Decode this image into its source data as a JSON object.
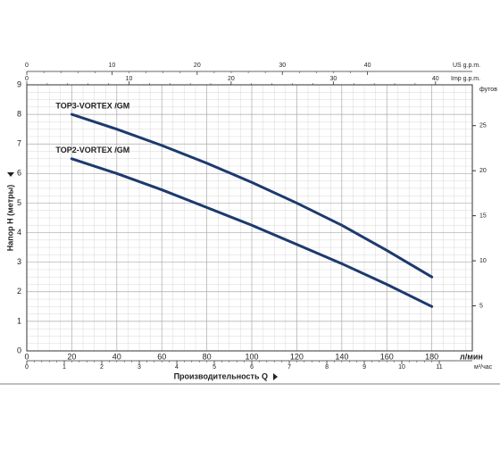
{
  "chart_data": {
    "type": "line",
    "x": [
      20,
      40,
      60,
      80,
      100,
      120,
      140,
      160,
      180
    ],
    "series": [
      {
        "name": "TOP3-VORTEX /GM",
        "color": "#1d3a6e",
        "values": [
          8.0,
          7.5,
          6.95,
          6.35,
          5.7,
          5.0,
          4.25,
          3.4,
          2.5
        ]
      },
      {
        "name": "TOP2-VORTEX /GM",
        "color": "#1d3a6e",
        "values": [
          6.5,
          6.0,
          5.45,
          4.85,
          4.25,
          3.6,
          2.95,
          2.25,
          1.5
        ]
      }
    ],
    "xlim": [
      0,
      198
    ],
    "xticks": [
      0,
      20,
      40,
      60,
      80,
      100,
      120,
      140,
      160,
      180
    ],
    "x_unit": "л/мин",
    "x_title": "Производительность Q",
    "ylim": [
      0,
      9
    ],
    "yticks": [
      0,
      1,
      2,
      3,
      4,
      5,
      6,
      7,
      8,
      9
    ],
    "y_title": "Напор H (метры)",
    "y2lim": [
      0,
      29.53
    ],
    "y2ticks": [
      5,
      10,
      15,
      20,
      25
    ],
    "y2_unit": "футов",
    "secondary_x_axes": [
      {
        "label": "м³/час",
        "lim": [
          0,
          11.88
        ],
        "ticks": [
          0,
          1,
          2,
          3,
          4,
          5,
          6,
          7,
          8,
          9,
          10,
          11
        ]
      },
      {
        "label": "US g.p.m.",
        "lim": [
          0,
          52.3
        ],
        "ticks": [
          0,
          10,
          20,
          30,
          40
        ]
      },
      {
        "label": "Imp g.p.m.",
        "lim": [
          0,
          43.6
        ],
        "ticks": [
          0,
          10,
          20,
          30,
          40
        ]
      }
    ],
    "grid": true
  }
}
